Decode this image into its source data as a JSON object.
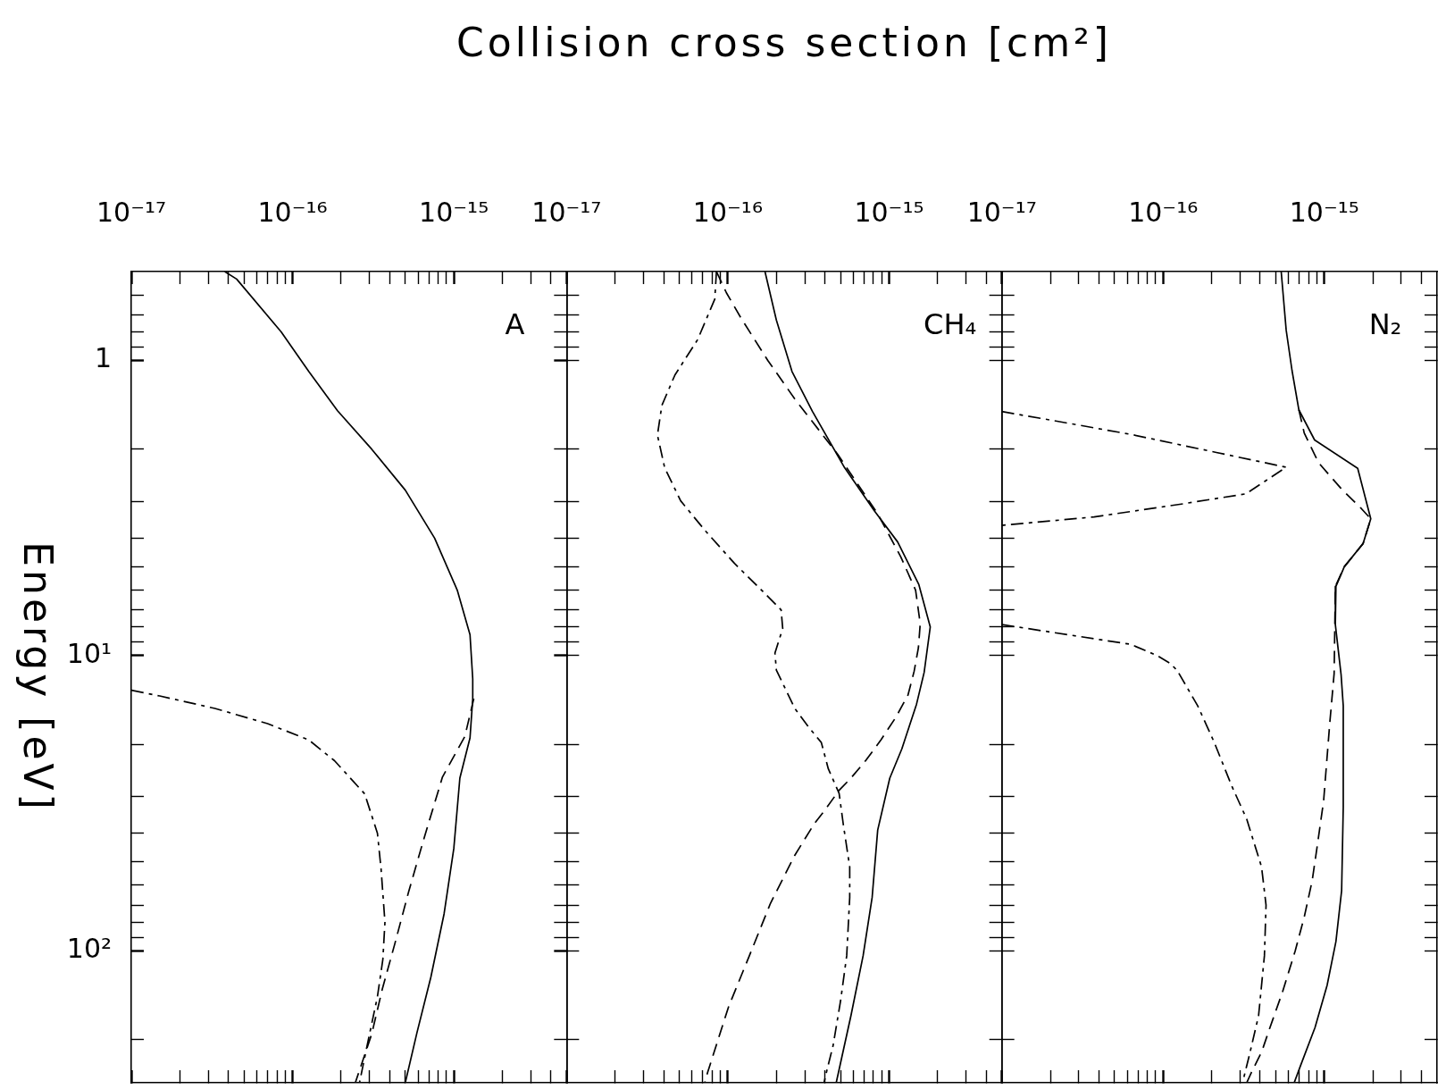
{
  "chart_data": [
    {
      "type": "line",
      "ylabel": "Energy [eV]",
      "log": "xy",
      "xlim": [
        1e-17,
        5e-15
      ],
      "ylim": [
        280,
        0.5
      ],
      "xticks": [
        {
          "value": 1e-17,
          "label": "10⁻¹⁷"
        },
        {
          "value": 2e-17,
          "label": null
        },
        {
          "value": 3e-17,
          "label": null
        },
        {
          "value": 4e-17,
          "label": null
        },
        {
          "value": 5e-17,
          "label": null
        },
        {
          "value": 6e-17,
          "label": null
        },
        {
          "value": 7e-17,
          "label": null
        },
        {
          "value": 8e-17,
          "label": null
        },
        {
          "value": 9e-17,
          "label": null
        },
        {
          "value": 1e-16,
          "label": "10⁻¹⁶"
        },
        {
          "value": 2e-16,
          "label": null
        },
        {
          "value": 3e-16,
          "label": null
        },
        {
          "value": 4e-16,
          "label": null
        },
        {
          "value": 5e-16,
          "label": null
        },
        {
          "value": 6e-16,
          "label": null
        },
        {
          "value": 7e-16,
          "label": null
        },
        {
          "value": 8e-16,
          "label": null
        },
        {
          "value": 9e-16,
          "label": null
        },
        {
          "value": 1e-15,
          "label": "10⁻¹⁵"
        },
        {
          "value": 2e-15,
          "label": null
        },
        {
          "value": 3e-15,
          "label": null
        },
        {
          "value": 4e-15,
          "label": null
        }
      ],
      "yticks": [
        {
          "value": 0.6,
          "label": null
        },
        {
          "value": 0.7,
          "label": null
        },
        {
          "value": 0.8,
          "label": null
        },
        {
          "value": 0.9,
          "label": null
        },
        {
          "value": 1,
          "label": "1"
        },
        {
          "value": 2,
          "label": null
        },
        {
          "value": 3,
          "label": null
        },
        {
          "value": 4,
          "label": null
        },
        {
          "value": 5,
          "label": null
        },
        {
          "value": 6,
          "label": null
        },
        {
          "value": 7,
          "label": null
        },
        {
          "value": 8,
          "label": null
        },
        {
          "value": 9,
          "label": null
        },
        {
          "value": 10,
          "label": "10¹"
        },
        {
          "value": 20,
          "label": null
        },
        {
          "value": 30,
          "label": null
        },
        {
          "value": 40,
          "label": null
        },
        {
          "value": 50,
          "label": null
        },
        {
          "value": 60,
          "label": null
        },
        {
          "value": 70,
          "label": null
        },
        {
          "value": 80,
          "label": null
        },
        {
          "value": 90,
          "label": null
        },
        {
          "value": 100,
          "label": "10²"
        },
        {
          "value": 200,
          "label": null
        }
      ],
      "annotations": [
        "A"
      ],
      "series": [
        {
          "color": "#000000",
          "line_style": "solid",
          "x": [
            3.8e-17,
            4.5e-17,
            8.5e-17,
            1.26e-16,
            1.9e-16,
            3.1e-16,
            5e-16,
            7.6e-16,
            1.05e-15,
            1.26e-15,
            1.31e-15,
            1.31e-15,
            1.26e-15,
            1.09e-15,
            1e-15,
            8.7e-16,
            7.2e-16,
            5.9e-16,
            5e-16
          ],
          "values": [
            0.5,
            0.53,
            0.8,
            1.09,
            1.48,
            2.0,
            2.75,
            4.0,
            6.0,
            8.5,
            12,
            14,
            19,
            26,
            45,
            75,
            123,
            190,
            280
          ]
        },
        {
          "color": "#000000",
          "line_style": "dashed",
          "x": [
            1.33e-15,
            1.17e-15,
            8.5e-16,
            6.5e-16,
            5.25e-16,
            4.3e-16,
            3.6e-16,
            3.1e-16,
            2.45e-16
          ],
          "values": [
            14,
            18.8,
            25.8,
            42,
            63,
            95,
            135,
            191,
            280
          ]
        },
        {
          "color": "#000000",
          "line_style": "dashdot",
          "x": [
            1e-17,
            1.5e-17,
            3.3e-17,
            7e-17,
            1.26e-16,
            1.82e-16,
            2.8e-16,
            3.36e-16,
            3.54e-16,
            3.74e-16,
            3.63e-16,
            3.36e-16,
            2.94e-16,
            2.6e-16
          ],
          "values": [
            13.1,
            13.7,
            15.1,
            17.0,
            19.3,
            22.7,
            29.4,
            40,
            53,
            80,
            107,
            143,
            202,
            280
          ]
        }
      ]
    },
    {
      "type": "line",
      "xlabel": "Collision cross section [cm²]",
      "log": "xy",
      "tick_labels": "x",
      "xlim": [
        1e-17,
        5e-15
      ],
      "ylim": [
        280,
        0.5
      ],
      "xticks": [
        {
          "value": 1e-17,
          "label": "10⁻¹⁷"
        },
        {
          "value": 2e-17,
          "label": null
        },
        {
          "value": 3e-17,
          "label": null
        },
        {
          "value": 4e-17,
          "label": null
        },
        {
          "value": 5e-17,
          "label": null
        },
        {
          "value": 6e-17,
          "label": null
        },
        {
          "value": 7e-17,
          "label": null
        },
        {
          "value": 8e-17,
          "label": null
        },
        {
          "value": 9e-17,
          "label": null
        },
        {
          "value": 1e-16,
          "label": "10⁻¹⁶"
        },
        {
          "value": 2e-16,
          "label": null
        },
        {
          "value": 3e-16,
          "label": null
        },
        {
          "value": 4e-16,
          "label": null
        },
        {
          "value": 5e-16,
          "label": null
        },
        {
          "value": 6e-16,
          "label": null
        },
        {
          "value": 7e-16,
          "label": null
        },
        {
          "value": 8e-16,
          "label": null
        },
        {
          "value": 9e-16,
          "label": null
        },
        {
          "value": 1e-15,
          "label": "10⁻¹⁵"
        },
        {
          "value": 2e-15,
          "label": null
        },
        {
          "value": 3e-15,
          "label": null
        },
        {
          "value": 4e-15,
          "label": null
        }
      ],
      "yticks": [
        {
          "value": 0.6,
          "label": null
        },
        {
          "value": 0.7,
          "label": null
        },
        {
          "value": 0.8,
          "label": null
        },
        {
          "value": 0.9,
          "label": null
        },
        {
          "value": 1,
          "label": null
        },
        {
          "value": 2,
          "label": null
        },
        {
          "value": 3,
          "label": null
        },
        {
          "value": 4,
          "label": null
        },
        {
          "value": 5,
          "label": null
        },
        {
          "value": 6,
          "label": null
        },
        {
          "value": 7,
          "label": null
        },
        {
          "value": 8,
          "label": null
        },
        {
          "value": 9,
          "label": null
        },
        {
          "value": 10,
          "label": null
        },
        {
          "value": 20,
          "label": null
        },
        {
          "value": 30,
          "label": null
        },
        {
          "value": 40,
          "label": null
        },
        {
          "value": 50,
          "label": null
        },
        {
          "value": 60,
          "label": null
        },
        {
          "value": 70,
          "label": null
        },
        {
          "value": 80,
          "label": null
        },
        {
          "value": 90,
          "label": null
        },
        {
          "value": 100,
          "label": null
        },
        {
          "value": 200,
          "label": null
        }
      ],
      "annotations": [
        "CH₄"
      ],
      "series": [
        {
          "color": "#000000",
          "line_style": "solid",
          "x": [
            1.7e-16,
            2e-16,
            2.5e-16,
            3.35e-16,
            5.3e-16,
            8.1e-16,
            1.13e-15,
            1.53e-15,
            1.8e-15,
            1.65e-15,
            1.48e-15,
            1.2e-15,
            1.01e-15,
            8.5e-16,
            7.85e-16,
            6.9e-16,
            5.8e-16,
            4.7e-16
          ],
          "values": [
            0.5,
            0.73,
            1.09,
            1.49,
            2.31,
            3.23,
            4.12,
            5.75,
            8.0,
            11.4,
            14.6,
            20.7,
            26,
            39,
            66,
            104,
            166,
            280
          ]
        },
        {
          "color": "#000000",
          "line_style": "dashed",
          "x": [
            8.5e-17,
            9.8e-17,
            1.21e-16,
            1.77e-16,
            2.6e-16,
            4.8e-16,
            8.5e-16,
            1.18e-15,
            1.46e-15,
            1.56e-15,
            1.52e-15,
            1.43e-15,
            1.31e-15,
            1.1e-15,
            8.9e-16,
            7.2e-16,
            5.8e-16,
            4.9e-16,
            3.96e-16,
            3.45e-16,
            2.6e-16,
            1.84e-16,
            1.36e-16,
            1.01e-16,
            7.5e-17,
            7.2e-17
          ],
          "values": [
            0.5,
            0.59,
            0.72,
            1.0,
            1.35,
            2.08,
            3.31,
            4.62,
            6.0,
            7.8,
            9.4,
            11.3,
            13.6,
            16.2,
            19.3,
            22.6,
            26,
            28.6,
            33.6,
            37,
            47.5,
            69,
            104,
            155,
            258,
            280
          ]
        },
        {
          "color": "#000000",
          "line_style": "dashdot",
          "x": [
            8.5e-17,
            8.3e-17,
            6.5e-17,
            4.7e-17,
            3.9e-17,
            3.66e-17,
            4.06e-17,
            5.1e-17,
            7.2e-17,
            1.1e-16,
            1.77e-16,
            2.14e-16,
            2.19e-16,
            1.96e-16,
            2e-16,
            2.28e-16,
            2.6e-16,
            3.15e-16,
            3.8e-16,
            4.2e-16,
            4.9e-16,
            5.2e-16,
            5.7e-16,
            5.7e-16,
            5.46e-16,
            5e-16,
            4.5e-16,
            4.13e-16,
            3.95e-16
          ],
          "values": [
            0.5,
            0.62,
            0.85,
            1.12,
            1.42,
            1.79,
            2.31,
            2.99,
            3.76,
            4.87,
            6.3,
            7.0,
            8.1,
            9.8,
            11.2,
            13.0,
            15.1,
            17.4,
            19.7,
            24.2,
            29.3,
            37.3,
            52,
            66,
            104,
            148,
            209,
            252,
            280
          ]
        }
      ]
    },
    {
      "type": "line",
      "log": "xy",
      "tick_labels": "x",
      "xlim": [
        1e-17,
        5e-15
      ],
      "ylim": [
        280,
        0.5
      ],
      "xticks": [
        {
          "value": 1e-17,
          "label": "10⁻¹⁷"
        },
        {
          "value": 2e-17,
          "label": null
        },
        {
          "value": 3e-17,
          "label": null
        },
        {
          "value": 4e-17,
          "label": null
        },
        {
          "value": 5e-17,
          "label": null
        },
        {
          "value": 6e-17,
          "label": null
        },
        {
          "value": 7e-17,
          "label": null
        },
        {
          "value": 8e-17,
          "label": null
        },
        {
          "value": 9e-17,
          "label": null
        },
        {
          "value": 1e-16,
          "label": "10⁻¹⁶"
        },
        {
          "value": 2e-16,
          "label": null
        },
        {
          "value": 3e-16,
          "label": null
        },
        {
          "value": 4e-16,
          "label": null
        },
        {
          "value": 5e-16,
          "label": null
        },
        {
          "value": 6e-16,
          "label": null
        },
        {
          "value": 7e-16,
          "label": null
        },
        {
          "value": 8e-16,
          "label": null
        },
        {
          "value": 9e-16,
          "label": null
        },
        {
          "value": 1e-15,
          "label": "10⁻¹⁵"
        },
        {
          "value": 2e-15,
          "label": null
        },
        {
          "value": 3e-15,
          "label": null
        },
        {
          "value": 4e-15,
          "label": null
        }
      ],
      "yticks": [
        {
          "value": 0.6,
          "label": null
        },
        {
          "value": 0.7,
          "label": null
        },
        {
          "value": 0.8,
          "label": null
        },
        {
          "value": 0.9,
          "label": null
        },
        {
          "value": 1,
          "label": null
        },
        {
          "value": 2,
          "label": null
        },
        {
          "value": 3,
          "label": null
        },
        {
          "value": 4,
          "label": null
        },
        {
          "value": 5,
          "label": null
        },
        {
          "value": 6,
          "label": null
        },
        {
          "value": 7,
          "label": null
        },
        {
          "value": 8,
          "label": null
        },
        {
          "value": 9,
          "label": null
        },
        {
          "value": 10,
          "label": null
        },
        {
          "value": 20,
          "label": null
        },
        {
          "value": 30,
          "label": null
        },
        {
          "value": 40,
          "label": null
        },
        {
          "value": 50,
          "label": null
        },
        {
          "value": 60,
          "label": null
        },
        {
          "value": 70,
          "label": null
        },
        {
          "value": 80,
          "label": null
        },
        {
          "value": 90,
          "label": null
        },
        {
          "value": 100,
          "label": null
        },
        {
          "value": 200,
          "label": null
        }
      ],
      "annotations": [
        "N₂"
      ],
      "series": [
        {
          "color": "#000000",
          "line_style": "solid",
          "x": [
            5.4e-16,
            5.8e-16,
            6.3e-16,
            6.95e-16,
            8.7e-16,
            1.61e-15,
            1.94e-15,
            1.74e-15,
            1.33e-15,
            1.18e-15,
            1.17e-15,
            1.27e-15,
            1.31e-15,
            1.31e-15,
            1.28e-15,
            1.18e-15,
            1.04e-15,
            8.75e-16,
            7.1e-16,
            6.5e-16
          ],
          "values": [
            0.5,
            0.79,
            1.08,
            1.47,
            1.86,
            2.32,
            3.44,
            4.17,
            5.0,
            5.83,
            7.85,
            11.6,
            14.8,
            32.6,
            62.5,
            93,
            131,
            182,
            246,
            280
          ]
        },
        {
          "color": "#000000",
          "line_style": "dashed",
          "x": [
            6.95e-16,
            7.5e-16,
            9.2e-16,
            1.28e-15,
            1.7e-15,
            1.94e-15,
            1.74e-15,
            1.33e-15,
            1.17e-15,
            1.16e-15,
            1.15e-15,
            1.08e-15,
            9.9e-16,
            9.1e-16,
            8.4e-16,
            7.5e-16,
            6.6e-16,
            5.5e-16,
            4.6e-16,
            4.1e-16,
            3.5e-16,
            3.3e-16
          ],
          "values": [
            1.47,
            1.76,
            2.22,
            2.73,
            3.18,
            3.44,
            4.17,
            5.0,
            5.83,
            8.3,
            11.5,
            17,
            31,
            43,
            58,
            77,
            100,
            138,
            182,
            219,
            261,
            280
          ]
        },
        {
          "color": "#000000",
          "line_style": "dashdot",
          "x": [
            1e-17,
            1.85e-17,
            6.3e-17,
            2.14e-16,
            5.8e-16,
            3.27e-16,
            1.33e-16,
            3.74e-17,
            1e-17,
            null,
            1e-17,
            6.3e-17,
            9.2e-17,
            1.1e-16,
            1.22e-16,
            1.64e-16,
            2.07e-16,
            2.67e-16,
            3.3e-16,
            4.08e-16,
            4.35e-16,
            4.25e-16,
            3.91e-16,
            3.44e-16,
            3.16e-16,
            3.1e-16
          ],
          "values": [
            1.49,
            1.58,
            1.78,
            2.05,
            2.3,
            2.83,
            3.06,
            3.39,
            3.62,
            null,
            7.85,
            9.16,
            10.0,
            10.6,
            11.2,
            14.8,
            19.6,
            27.7,
            35.8,
            52,
            70,
            104,
            166,
            224,
            270,
            280
          ]
        }
      ]
    }
  ]
}
